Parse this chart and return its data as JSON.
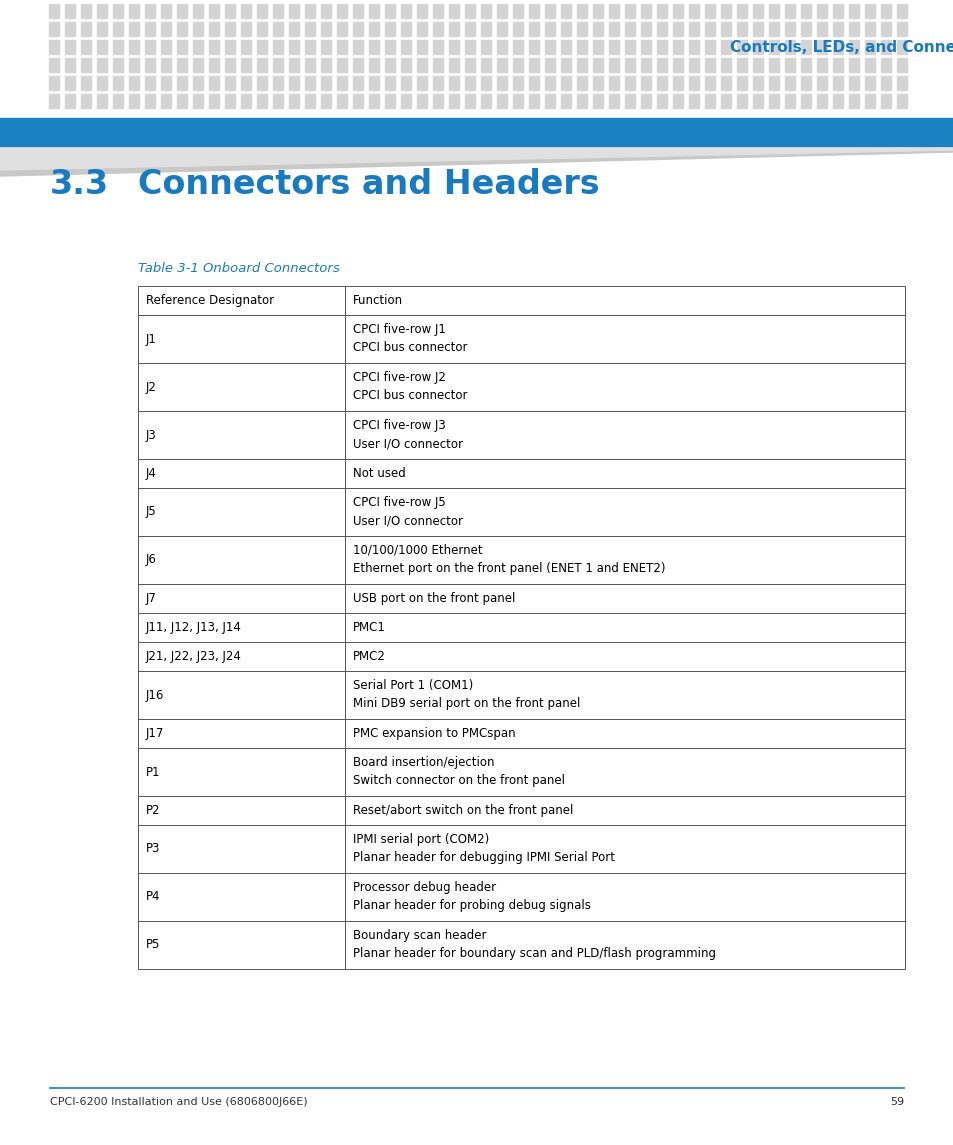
{
  "header_title": "Controls, LEDs, and Connectors",
  "section_number": "3.3",
  "section_title": "Connectors and Headers",
  "table_caption": "Table 3-1 Onboard Connectors",
  "col1_header": "Reference Designator",
  "col2_header": "Function",
  "rows": [
    {
      "ref": "J1",
      "func": [
        "CPCI five-row J1",
        "CPCI bus connector"
      ]
    },
    {
      "ref": "J2",
      "func": [
        "CPCI five-row J2",
        "CPCI bus connector"
      ]
    },
    {
      "ref": "J3",
      "func": [
        "CPCI five-row J3",
        "User I/O connector"
      ]
    },
    {
      "ref": "J4",
      "func": [
        "Not used"
      ]
    },
    {
      "ref": "J5",
      "func": [
        "CPCI five-row J5",
        "User I/O connector"
      ]
    },
    {
      "ref": "J6",
      "func": [
        "10/100/1000 Ethernet",
        "Ethernet port on the front panel (ENET 1 and ENET2)"
      ]
    },
    {
      "ref": "J7",
      "func": [
        "USB port on the front panel"
      ]
    },
    {
      "ref": "J11, J12, J13, J14",
      "func": [
        "PMC1"
      ]
    },
    {
      "ref": "J21, J22, J23, J24",
      "func": [
        "PMC2"
      ]
    },
    {
      "ref": "J16",
      "func": [
        "Serial Port 1 (COM1)",
        "Mini DB9 serial port on the front panel"
      ]
    },
    {
      "ref": "J17",
      "func": [
        "PMC expansion to PMCspan"
      ]
    },
    {
      "ref": "P1",
      "func": [
        "Board insertion/ejection",
        "Switch connector on the front panel"
      ]
    },
    {
      "ref": "P2",
      "func": [
        "Reset/abort switch on the front panel"
      ]
    },
    {
      "ref": "P3",
      "func": [
        "IPMI serial port (COM2)",
        "Planar header for debugging IPMI Serial Port"
      ]
    },
    {
      "ref": "P4",
      "func": [
        "Processor debug header",
        "Planar header for probing debug signals"
      ]
    },
    {
      "ref": "P5",
      "func": [
        "Boundary scan header",
        "Planar header for boundary scan and PLD/flash programming"
      ]
    }
  ],
  "footer_text": "CPCI-6200 Installation and Use (6806800J66E)",
  "page_number": "59",
  "header_text_color": "#1a7abf",
  "header_bar_color": "#1a82c0",
  "section_title_color": "#1a7abf",
  "table_caption_color": "#1a7abf",
  "dot_grid_color": "#d4d4d4",
  "background_color": "#ffffff",
  "table_border_color": "#555555",
  "text_color": "#000000",
  "footer_color": "#333333",
  "footer_line_color": "#1a7abf"
}
